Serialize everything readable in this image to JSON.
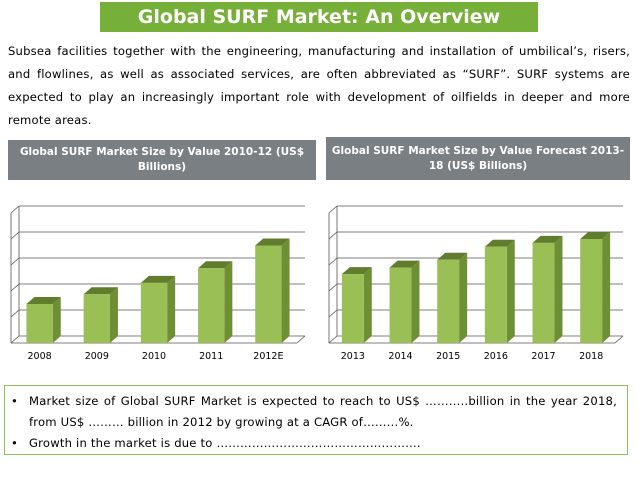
{
  "title": "Global SURF Market: An Overview",
  "intro": "Subsea facilities together with the engineering, manufacturing and installation of umbilical’s, risers, and flowlines, as well as associated services, are often abbreviated as “SURF”. SURF systems are expected to play an increasingly important role with development of oilfields in deeper and more remote areas.",
  "colors": {
    "accent": "#77b039",
    "bar_front": "#99bf55",
    "bar_side": "#6f8f35",
    "header_bg": "#7a7f83"
  },
  "chart_data": [
    {
      "type": "bar",
      "title": "Global SURF Market Size by Value 2010-12 (US$ Billions)",
      "categories": [
        "2008",
        "2009",
        "2010",
        "2011",
        "2012E"
      ],
      "values": [
        2.4,
        3.0,
        3.7,
        4.6,
        6.0
      ],
      "ylim": [
        0,
        8
      ],
      "grid": true,
      "style": "3d"
    },
    {
      "type": "bar",
      "title": "Global SURF Market Size by Value Forecast 2013-18 (US$ Billions)",
      "categories": [
        "2013",
        "2014",
        "2015",
        "2016",
        "2017",
        "2018"
      ],
      "values": [
        5.3,
        5.8,
        6.4,
        7.4,
        7.7,
        8.0
      ],
      "ylim": [
        0,
        10
      ],
      "grid": true,
      "style": "3d"
    }
  ],
  "bullets": [
    {
      "marker": "•",
      "text": "Market size of Global SURF Market is expected to reach to US$ ………..billion  in the year 2018, from US$ ……… billion in 2012 by growing at a CAGR of………%."
    },
    {
      "marker": "•",
      "text": "Growth in the market is due to ……………………………………………."
    }
  ]
}
